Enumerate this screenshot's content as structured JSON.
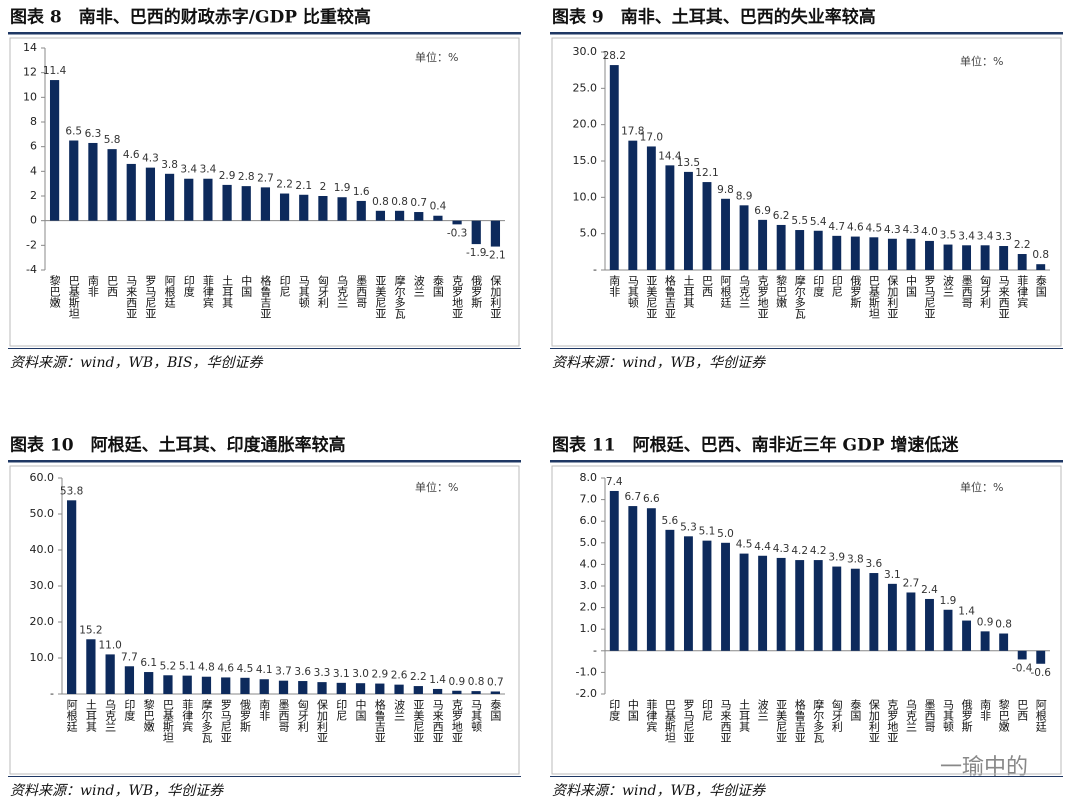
{
  "chart_data": [
    {
      "type": "bar",
      "title": "图表 8　南非、巴西的财政赤字/GDP 比重较高",
      "unit": "单位：%",
      "source": "资料来源：wind，WB，BIS，华创证券",
      "color": "#0d2a5c",
      "categories": [
        "黎巴嫩",
        "巴基斯坦",
        "南非",
        "巴西",
        "马来西亚",
        "罗马尼亚",
        "阿根廷",
        "印度",
        "菲律宾",
        "土耳其",
        "中国",
        "格鲁吉亚",
        "印尼",
        "马其顿",
        "匈牙利",
        "乌克兰",
        "墨西哥",
        "亚美尼亚",
        "摩尔多瓦",
        "波兰",
        "泰国",
        "克罗地亚",
        "俄罗斯",
        "保加利亚"
      ],
      "values": [
        11.4,
        6.5,
        6.3,
        5.8,
        4.6,
        4.3,
        3.8,
        3.4,
        3.4,
        2.9,
        2.8,
        2.7,
        2.2,
        2.1,
        2,
        1.9,
        1.6,
        0.8,
        0.8,
        0.7,
        0.4,
        -0.3,
        -1.9,
        -2.1
      ],
      "ylim": [
        -4,
        14
      ],
      "yticks": [
        -4,
        -2,
        0,
        2,
        4,
        6,
        8,
        10,
        12,
        14
      ]
    },
    {
      "type": "bar",
      "title": "图表 9　南非、土耳其、巴西的失业率较高",
      "unit": "单位：%",
      "source": "资料来源：wind，WB，华创证券",
      "color": "#0d2a5c",
      "categories": [
        "南非",
        "马其顿",
        "亚美尼亚",
        "格鲁吉亚",
        "土耳其",
        "巴西",
        "阿根廷",
        "乌克兰",
        "克罗地亚",
        "黎巴嫩",
        "摩尔多瓦",
        "印度",
        "印尼",
        "俄罗斯",
        "巴基斯坦",
        "保加利亚",
        "中国",
        "罗马尼亚",
        "波兰",
        "墨西哥",
        "匈牙利",
        "马来西亚",
        "菲律宾",
        "泰国"
      ],
      "values": [
        28.2,
        17.8,
        17.0,
        14.4,
        13.5,
        12.1,
        9.8,
        8.9,
        6.9,
        6.2,
        5.5,
        5.4,
        4.7,
        4.6,
        4.5,
        4.3,
        4.3,
        4.0,
        3.5,
        3.4,
        3.4,
        3.3,
        2.2,
        0.8
      ],
      "value_labels": [
        "28.2",
        "17.8",
        "17.0",
        "14.4",
        "13.5",
        "12.1",
        "9.8",
        "8.9",
        "6.9",
        "6.2",
        "5.5",
        "5.4",
        "4.7",
        "4.6",
        "4.5",
        "4.3",
        "4.3",
        "4.0",
        "3.5",
        "3.4",
        "3.4",
        "3.3",
        "2.2",
        "0.8"
      ],
      "ylim": [
        0,
        30
      ],
      "yticks": [
        {
          "value": 0,
          "label": "-"
        },
        {
          "value": 5,
          "label": "5.0"
        },
        {
          "value": 10,
          "label": "10.0"
        },
        {
          "value": 15,
          "label": "15.0"
        },
        {
          "value": 20,
          "label": "20.0"
        },
        {
          "value": 25,
          "label": "25.0"
        },
        {
          "value": 30,
          "label": "30.0"
        }
      ]
    },
    {
      "type": "bar",
      "title": "图表 10　阿根廷、土耳其、印度通胀率较高",
      "unit": "单位：%",
      "source": "资料来源：wind，WB，华创证券",
      "color": "#0d2a5c",
      "categories": [
        "阿根廷",
        "土耳其",
        "乌克兰",
        "印度",
        "黎巴嫩",
        "巴基斯坦",
        "菲律宾",
        "摩尔多瓦",
        "罗马尼亚",
        "俄罗斯",
        "南非",
        "墨西哥",
        "匈牙利",
        "保加利亚",
        "印尼",
        "中国",
        "格鲁吉亚",
        "波兰",
        "亚美尼亚",
        "马来西亚",
        "克罗地亚",
        "马其顿",
        "泰国"
      ],
      "values": [
        53.8,
        15.2,
        11.0,
        7.7,
        6.1,
        5.2,
        5.1,
        4.8,
        4.6,
        4.5,
        4.1,
        3.7,
        3.6,
        3.3,
        3.1,
        3.0,
        2.9,
        2.6,
        2.2,
        1.4,
        0.9,
        0.8,
        0.7
      ],
      "value_labels": [
        "53.8",
        "15.2",
        "11.0",
        "7.7",
        "6.1",
        "5.2",
        "5.1",
        "4.8",
        "4.6",
        "4.5",
        "4.1",
        "3.7",
        "3.6",
        "3.3",
        "3.1",
        "3.0",
        "2.9",
        "2.6",
        "2.2",
        "1.4",
        "0.9",
        "0.8",
        "0.7"
      ],
      "ylim": [
        0,
        60
      ],
      "yticks": [
        {
          "value": 0,
          "label": "-"
        },
        {
          "value": 10,
          "label": "10.0"
        },
        {
          "value": 20,
          "label": "20.0"
        },
        {
          "value": 30,
          "label": "30.0"
        },
        {
          "value": 40,
          "label": "40.0"
        },
        {
          "value": 50,
          "label": "50.0"
        },
        {
          "value": 60,
          "label": "60.0"
        }
      ]
    },
    {
      "type": "bar",
      "title": "图表 11　阿根廷、巴西、南非近三年 GDP 增速低迷",
      "unit": "单位：%",
      "source": "资料来源：wind，WB，华创证券",
      "color": "#0d2a5c",
      "categories": [
        "印度",
        "中国",
        "菲律宾",
        "巴基斯坦",
        "罗马尼亚",
        "印尼",
        "马来西亚",
        "土耳其",
        "波兰",
        "亚美尼亚",
        "格鲁吉亚",
        "摩尔多瓦",
        "匈牙利",
        "泰国",
        "保加利亚",
        "克罗地亚",
        "乌克兰",
        "墨西哥",
        "马其顿",
        "俄罗斯",
        "南非",
        "黎巴嫩",
        "巴西",
        "阿根廷"
      ],
      "values": [
        7.4,
        6.7,
        6.6,
        5.6,
        5.3,
        5.1,
        5.0,
        4.5,
        4.4,
        4.3,
        4.2,
        4.2,
        3.9,
        3.8,
        3.6,
        3.1,
        2.7,
        2.4,
        1.9,
        1.4,
        0.9,
        0.8,
        -0.4,
        -0.6
      ],
      "value_labels": [
        "7.4",
        "6.7",
        "6.6",
        "5.6",
        "5.3",
        "5.1",
        "5.0",
        "4.5",
        "4.4",
        "4.3",
        "4.2",
        "4.2",
        "3.9",
        "3.8",
        "3.6",
        "3.1",
        "2.7",
        "2.4",
        "1.9",
        "1.4",
        "0.9",
        "0.8",
        "-0.4",
        "-0.6"
      ],
      "ylim": [
        -2,
        8
      ],
      "yticks": [
        {
          "value": -2,
          "label": "-2.0"
        },
        {
          "value": -1,
          "label": "-1.0"
        },
        {
          "value": 0,
          "label": "-"
        },
        {
          "value": 1,
          "label": "1.0"
        },
        {
          "value": 2,
          "label": "2.0"
        },
        {
          "value": 3,
          "label": "3.0"
        },
        {
          "value": 4,
          "label": "4.0"
        },
        {
          "value": 5,
          "label": "5.0"
        },
        {
          "value": 6,
          "label": "6.0"
        },
        {
          "value": 7,
          "label": "7.0"
        },
        {
          "value": 8,
          "label": "8.0"
        }
      ]
    }
  ],
  "watermark": "一瑜中的"
}
